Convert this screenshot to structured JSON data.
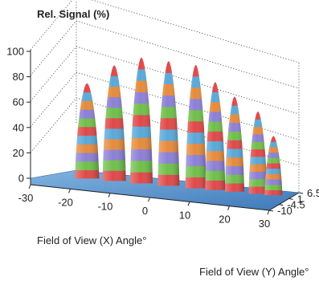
{
  "chart_data": {
    "type": "surface3d",
    "zlabel": "Rel. Signal (%)",
    "xlabel": "Field of View (X) Angle°",
    "ylabel": "Field of View (Y) Angle°",
    "zticks": [
      "0",
      "20",
      "40",
      "60",
      "80",
      "100"
    ],
    "xticks": [
      "-30",
      "-20",
      "-10",
      "0",
      "10",
      "20",
      "30"
    ],
    "yticks": [
      "-10",
      "-4.5",
      "1",
      "6.5"
    ],
    "zlim": [
      0,
      100
    ],
    "xlim": [
      -30,
      30
    ],
    "ylim": [
      -10,
      6.5
    ],
    "grid": true,
    "band_colors": [
      "#e04848",
      "#6fbf4a",
      "#8c7fd6",
      "#e58b3c",
      "#5aa8d8"
    ],
    "peaks": [
      {
        "x": -20,
        "y": 1,
        "value": 74
      },
      {
        "x": -13,
        "y": 1,
        "value": 90
      },
      {
        "x": -6,
        "y": 1,
        "value": 98
      },
      {
        "x": 1,
        "y": 1,
        "value": 97
      },
      {
        "x": 8,
        "y": 1,
        "value": 96
      },
      {
        "x": 13,
        "y": 1,
        "value": 84
      },
      {
        "x": 18,
        "y": 1,
        "value": 74
      },
      {
        "x": 24,
        "y": 1,
        "value": 64
      },
      {
        "x": 28,
        "y": 1,
        "value": 46
      }
    ]
  }
}
